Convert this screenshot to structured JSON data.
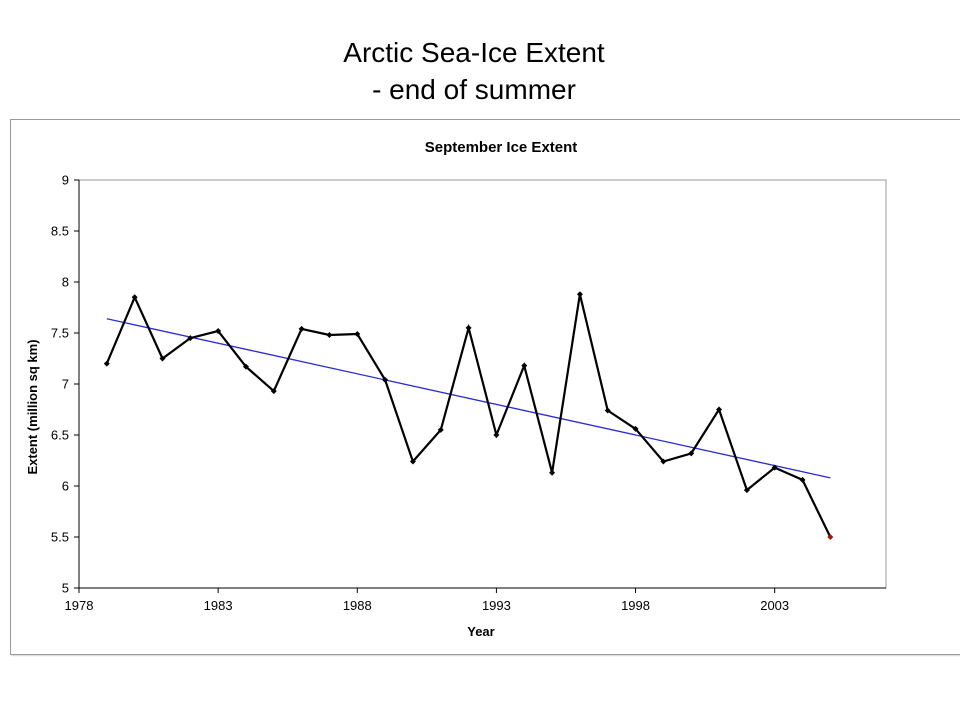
{
  "slide": {
    "title_line1": "Arctic Sea-Ice Extent",
    "title_line2": "- end of summer"
  },
  "chart_data": {
    "type": "line",
    "title": "September Ice Extent",
    "xlabel": "Year",
    "ylabel": "Extent (million sq km)",
    "xlim": [
      1978,
      2007
    ],
    "ylim": [
      5,
      9
    ],
    "xticks": [
      1978,
      1983,
      1988,
      1993,
      1998,
      2003
    ],
    "yticks": [
      5,
      5.5,
      6,
      6.5,
      7,
      7.5,
      8,
      8.5,
      9
    ],
    "grid": false,
    "series": [
      {
        "line_color": "#000000",
        "marker_color": "#000000",
        "highlight_last_color": "#a31515",
        "x": [
          1979,
          1980,
          1981,
          1982,
          1983,
          1984,
          1985,
          1986,
          1987,
          1988,
          1989,
          1990,
          1991,
          1992,
          1993,
          1994,
          1995,
          1996,
          1997,
          1998,
          1999,
          2000,
          2001,
          2002,
          2003,
          2004,
          2005
        ],
        "values": [
          7.2,
          7.85,
          7.25,
          7.45,
          7.52,
          7.17,
          6.93,
          7.54,
          7.48,
          7.49,
          7.04,
          6.24,
          6.55,
          7.55,
          6.5,
          7.18,
          6.13,
          7.88,
          6.74,
          6.56,
          6.24,
          6.32,
          6.75,
          5.96,
          6.18,
          6.06,
          5.5
        ]
      }
    ],
    "trendline": {
      "color": "#2b2bd6",
      "x": [
        1979,
        2005
      ],
      "values": [
        7.64,
        6.08
      ]
    }
  }
}
